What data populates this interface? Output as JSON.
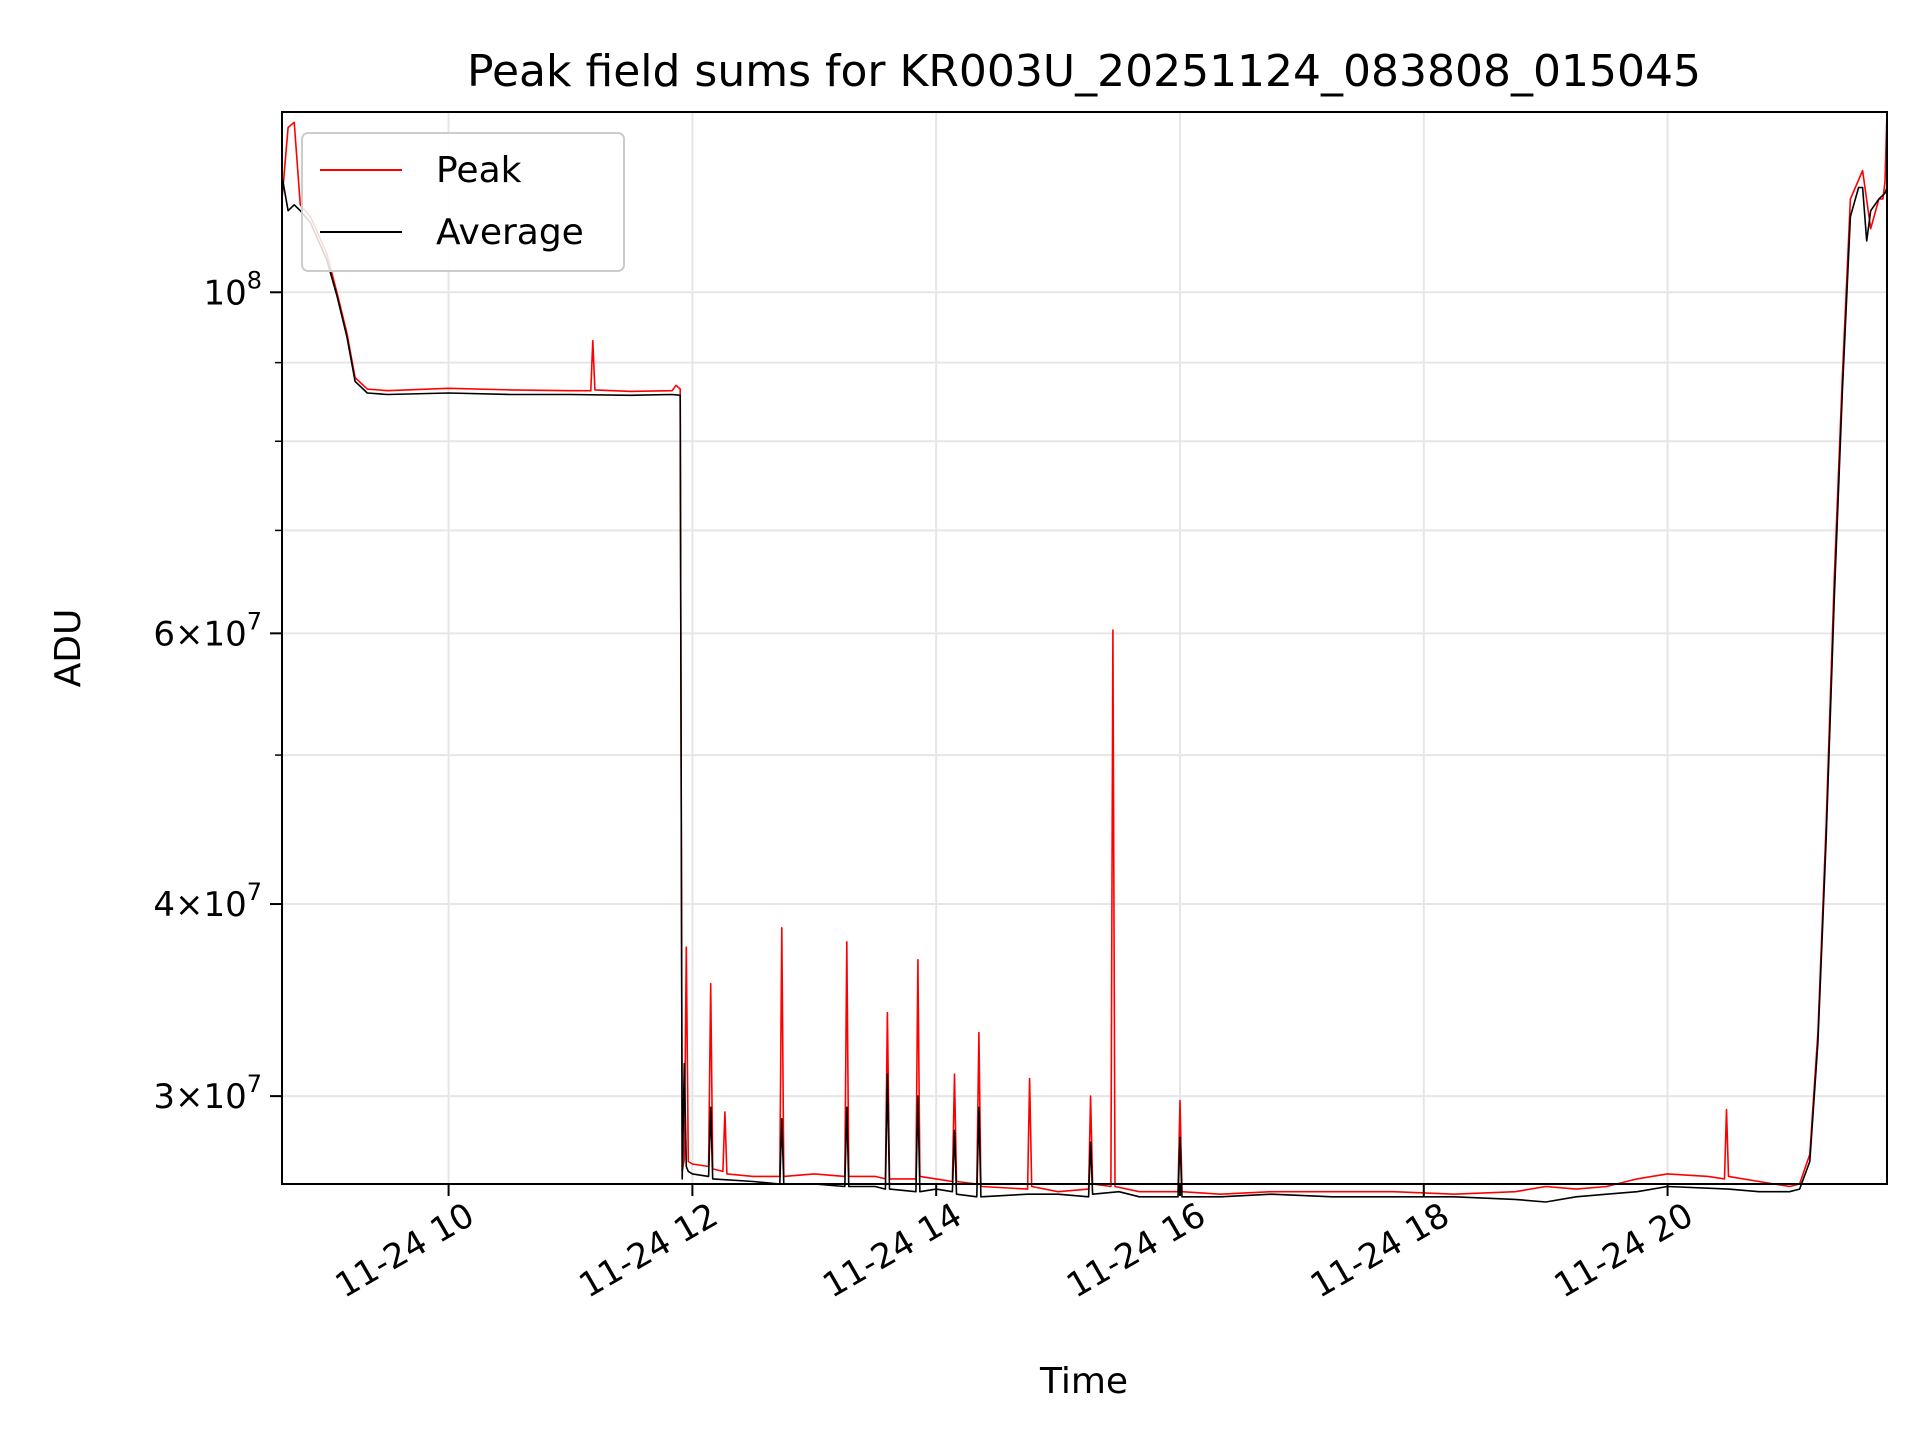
{
  "chart_data": {
    "type": "line",
    "title": "Peak field sums for KR003U_20251124_083808_015045",
    "xlabel": "Time",
    "ylabel": "ADU",
    "y_scale": "log",
    "ylim": [
      26300000,
      131000000
    ],
    "x_range_hours": [
      "2025-11-24 08:38",
      "2025-11-24 21:48"
    ],
    "x_ticks": [
      {
        "hour": 10,
        "label": "11-24 10"
      },
      {
        "hour": 12,
        "label": "11-24 12"
      },
      {
        "hour": 14,
        "label": "11-24 14"
      },
      {
        "hour": 16,
        "label": "11-24 16"
      },
      {
        "hour": 18,
        "label": "11-24 18"
      },
      {
        "hour": 20,
        "label": "11-24 20"
      }
    ],
    "y_major_ticks": [
      {
        "value": 100000000,
        "mant": "",
        "exp": "8"
      },
      {
        "value": 60000000,
        "mant": "6",
        "exp": "7"
      },
      {
        "value": 40000000,
        "mant": "4",
        "exp": "7"
      },
      {
        "value": 30000000,
        "mant": "3",
        "exp": "7"
      }
    ],
    "y_minor_ticks": [
      50000000,
      70000000,
      80000000,
      90000000
    ],
    "grid": true,
    "legend": "upper-left",
    "series": [
      {
        "name": "Peak",
        "color": "#ff0000",
        "x": [
          "08:38",
          "08:41",
          "08:44",
          "08:47",
          "08:52",
          "09:00",
          "09:05",
          "09:10",
          "09:14",
          "09:20",
          "09:30",
          "10:00",
          "10:30",
          "11:00",
          "11:10",
          "11:11",
          "11:12",
          "11:30",
          "11:50",
          "11:52",
          "11:54",
          "11:55",
          "11:56",
          "11:57",
          "11:58",
          "12:00",
          "12:08",
          "12:09",
          "12:10",
          "12:15",
          "12:16",
          "12:17",
          "12:30",
          "12:43",
          "12:44",
          "12:45",
          "13:00",
          "13:15",
          "13:16",
          "13:17",
          "13:30",
          "13:35",
          "13:36",
          "13:37",
          "13:50",
          "13:51",
          "13:52",
          "14:00",
          "14:08",
          "14:09",
          "14:10",
          "14:20",
          "14:21",
          "14:22",
          "14:45",
          "14:46",
          "14:47",
          "15:00",
          "15:15",
          "15:16",
          "15:17",
          "15:26",
          "15:27",
          "15:28",
          "15:40",
          "15:59",
          "16:00",
          "16:01",
          "16:20",
          "16:45",
          "17:15",
          "17:45",
          "18:15",
          "18:45",
          "19:00",
          "19:15",
          "19:30",
          "19:45",
          "20:00",
          "20:20",
          "20:28",
          "20:29",
          "20:30",
          "20:45",
          "21:00",
          "21:05",
          "21:10",
          "21:14",
          "21:18",
          "21:22",
          "21:26",
          "21:30",
          "21:36",
          "21:40",
          "21:44",
          "21:46",
          "21:47",
          "21:48"
        ],
        "y": [
          115000000,
          128000000,
          129000000,
          114000000,
          112000000,
          106000000,
          100000000,
          94000000,
          88000000,
          86500000,
          86300000,
          86600000,
          86400000,
          86300000,
          86300000,
          93000000,
          86400000,
          86200000,
          86300000,
          87000000,
          86500000,
          26800000,
          27300000,
          37500000,
          27200000,
          27100000,
          27000000,
          35500000,
          26900000,
          26800000,
          29300000,
          26700000,
          26600000,
          26600000,
          38600000,
          26600000,
          26700000,
          26600000,
          37800000,
          26600000,
          26600000,
          26500000,
          34000000,
          26500000,
          26500000,
          36800000,
          26600000,
          26500000,
          26400000,
          31000000,
          26400000,
          26300000,
          33000000,
          26200000,
          26100000,
          30800000,
          26200000,
          26000000,
          26100000,
          30000000,
          26300000,
          26200000,
          60300000,
          26200000,
          26000000,
          26000000,
          29800000,
          26000000,
          25900000,
          26000000,
          26000000,
          26000000,
          25900000,
          26000000,
          26200000,
          26100000,
          26200000,
          26500000,
          26700000,
          26600000,
          26500000,
          29400000,
          26600000,
          26400000,
          26200000,
          26300000,
          27500000,
          33000000,
          45000000,
          65000000,
          88000000,
          115000000,
          120000000,
          110000000,
          115000000,
          115000000,
          118000000,
          131000000
        ]
      },
      {
        "name": "Average",
        "color": "#000000",
        "x": [
          "08:38",
          "08:41",
          "08:44",
          "08:47",
          "08:52",
          "09:00",
          "09:05",
          "09:10",
          "09:14",
          "09:20",
          "09:30",
          "10:00",
          "10:30",
          "11:00",
          "11:30",
          "11:50",
          "11:54",
          "11:55",
          "11:56",
          "11:57",
          "11:58",
          "12:00",
          "12:08",
          "12:09",
          "12:10",
          "12:30",
          "12:43",
          "12:44",
          "12:45",
          "13:00",
          "13:15",
          "13:16",
          "13:17",
          "13:30",
          "13:35",
          "13:36",
          "13:37",
          "13:50",
          "13:51",
          "13:52",
          "14:00",
          "14:08",
          "14:09",
          "14:10",
          "14:20",
          "14:21",
          "14:22",
          "14:45",
          "15:00",
          "15:15",
          "15:16",
          "15:17",
          "15:30",
          "15:40",
          "15:59",
          "16:00",
          "16:01",
          "16:20",
          "16:45",
          "17:15",
          "17:45",
          "18:15",
          "18:45",
          "19:00",
          "19:15",
          "19:30",
          "19:45",
          "20:00",
          "20:30",
          "20:45",
          "21:00",
          "21:05",
          "21:10",
          "21:14",
          "21:18",
          "21:22",
          "21:26",
          "21:30",
          "21:34",
          "21:36",
          "21:38",
          "21:40",
          "21:44",
          "21:47",
          "21:48"
        ],
        "y": [
          119000000,
          113000000,
          114000000,
          113000000,
          111000000,
          105000000,
          99500000,
          93500000,
          87500000,
          86000000,
          85800000,
          86000000,
          85800000,
          85800000,
          85700000,
          85800000,
          85700000,
          26500000,
          31500000,
          27000000,
          26800000,
          26700000,
          26600000,
          29500000,
          26500000,
          26400000,
          26300000,
          29000000,
          26300000,
          26300000,
          26200000,
          29500000,
          26200000,
          26200000,
          26100000,
          31000000,
          26100000,
          26000000,
          30000000,
          26000000,
          26100000,
          26000000,
          28500000,
          25900000,
          25800000,
          29500000,
          25800000,
          25900000,
          25900000,
          25800000,
          28000000,
          25900000,
          26000000,
          25800000,
          25800000,
          28200000,
          25800000,
          25800000,
          25900000,
          25800000,
          25800000,
          25800000,
          25700000,
          25600000,
          25800000,
          25900000,
          26000000,
          26200000,
          26100000,
          26000000,
          26000000,
          26100000,
          27200000,
          32500000,
          44000000,
          63000000,
          86000000,
          112000000,
          117000000,
          117000000,
          108000000,
          113000000,
          115000000,
          116000000,
          117000000
        ]
      }
    ]
  }
}
